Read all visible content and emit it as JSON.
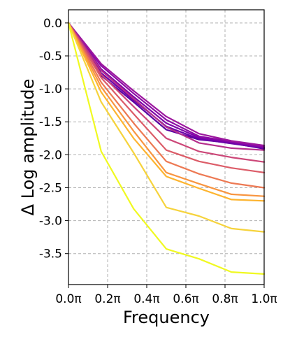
{
  "chart_data": {
    "type": "line",
    "xlabel": "Frequency",
    "ylabel": "Δ Log amplitude",
    "xlim": [
      0,
      1
    ],
    "ylim": [
      -3.97,
      0.2
    ],
    "grid": true,
    "legend": "none",
    "x_ticks": [
      {
        "value": 0.0,
        "label": "0.0π"
      },
      {
        "value": 0.2,
        "label": "0.2π"
      },
      {
        "value": 0.4,
        "label": "0.4π"
      },
      {
        "value": 0.6,
        "label": "0.6π"
      },
      {
        "value": 0.8,
        "label": "0.8π"
      },
      {
        "value": 1.0,
        "label": "1.0π"
      }
    ],
    "y_ticks": [
      {
        "value": 0.0,
        "label": "0.0"
      },
      {
        "value": -0.5,
        "label": "-0.5"
      },
      {
        "value": -1.0,
        "label": "-1.0"
      },
      {
        "value": -1.5,
        "label": "-1.5"
      },
      {
        "value": -2.0,
        "label": "-2.0"
      },
      {
        "value": -2.5,
        "label": "-2.5"
      },
      {
        "value": -3.0,
        "label": "-3.0"
      },
      {
        "value": -3.5,
        "label": "-3.5"
      }
    ],
    "x": [
      0.0,
      0.167,
      0.333,
      0.5,
      0.667,
      0.833,
      1.0
    ],
    "series": [
      {
        "color": "#5b02a3",
        "values": [
          0.0,
          -0.8,
          -1.2,
          -1.62,
          -1.77,
          -1.82,
          -1.91
        ]
      },
      {
        "color": "#6a00a8",
        "values": [
          0.0,
          -0.76,
          -1.17,
          -1.57,
          -1.76,
          -1.83,
          -1.9
        ]
      },
      {
        "color": "#7e03a8",
        "values": [
          0.0,
          -0.7,
          -1.12,
          -1.52,
          -1.74,
          -1.81,
          -1.89
        ]
      },
      {
        "color": "#8b0aa5",
        "values": [
          0.0,
          -0.65,
          -1.07,
          -1.47,
          -1.72,
          -1.8,
          -1.88
        ]
      },
      {
        "color": "#9c179e",
        "values": [
          0.0,
          -0.62,
          -1.03,
          -1.42,
          -1.68,
          -1.79,
          -1.86
        ]
      },
      {
        "color": "#b52f8c",
        "values": [
          0.0,
          -0.72,
          -1.15,
          -1.58,
          -1.82,
          -1.9,
          -1.93
        ]
      },
      {
        "color": "#cc4778",
        "values": [
          0.0,
          -0.78,
          -1.27,
          -1.75,
          -1.95,
          -2.04,
          -2.11
        ]
      },
      {
        "color": "#dc5c68",
        "values": [
          0.0,
          -0.83,
          -1.38,
          -1.93,
          -2.1,
          -2.2,
          -2.27
        ]
      },
      {
        "color": "#ed7953",
        "values": [
          0.0,
          -0.9,
          -1.52,
          -2.1,
          -2.29,
          -2.43,
          -2.5
        ]
      },
      {
        "color": "#f89540",
        "values": [
          0.0,
          -0.97,
          -1.64,
          -2.27,
          -2.44,
          -2.6,
          -2.63
        ]
      },
      {
        "color": "#fdb42f",
        "values": [
          0.0,
          -1.05,
          -1.75,
          -2.33,
          -2.51,
          -2.68,
          -2.7
        ]
      },
      {
        "color": "#f6d33c",
        "values": [
          0.0,
          -1.2,
          -1.97,
          -2.8,
          -2.93,
          -3.12,
          -3.17
        ]
      },
      {
        "color": "#f0f921",
        "values": [
          0.0,
          -1.95,
          -2.82,
          -3.43,
          -3.58,
          -3.78,
          -3.81
        ]
      }
    ]
  }
}
